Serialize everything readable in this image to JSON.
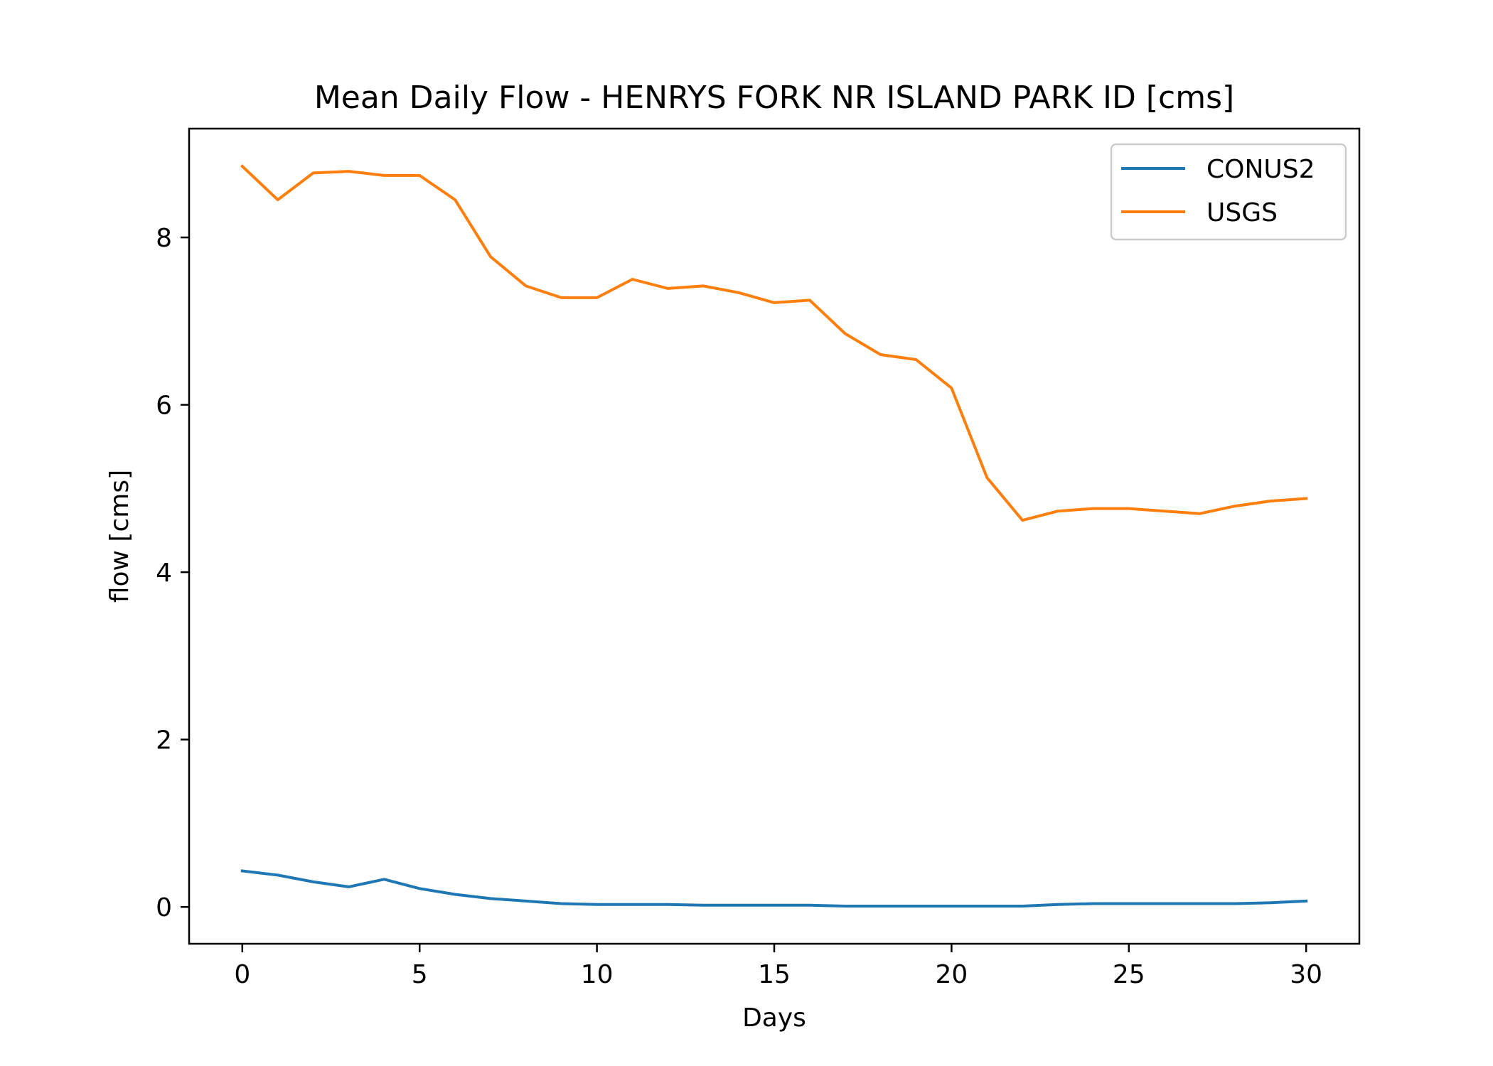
{
  "chart_data": {
    "type": "line",
    "title": "Mean Daily Flow - HENRYS FORK NR ISLAND PARK ID [cms]",
    "xlabel": "Days",
    "ylabel": "flow [cms]",
    "xlim": [
      -1.5,
      31.5
    ],
    "ylim": [
      -0.44,
      9.3
    ],
    "xticks": [
      0,
      5,
      10,
      15,
      20,
      25,
      30
    ],
    "yticks": [
      0,
      2,
      4,
      6,
      8
    ],
    "grid": false,
    "legend_position": "top-right",
    "x": [
      0,
      1,
      2,
      3,
      4,
      5,
      6,
      7,
      8,
      9,
      10,
      11,
      12,
      13,
      14,
      15,
      16,
      17,
      18,
      19,
      20,
      21,
      22,
      23,
      24,
      25,
      26,
      27,
      28,
      29,
      30
    ],
    "series": [
      {
        "name": "CONUS2",
        "color": "#1f77b4",
        "values": [
          0.43,
          0.38,
          0.3,
          0.24,
          0.33,
          0.22,
          0.15,
          0.1,
          0.07,
          0.04,
          0.03,
          0.03,
          0.03,
          0.02,
          0.02,
          0.02,
          0.02,
          0.01,
          0.01,
          0.01,
          0.01,
          0.01,
          0.01,
          0.03,
          0.04,
          0.04,
          0.04,
          0.04,
          0.04,
          0.05,
          0.07
        ]
      },
      {
        "name": "USGS",
        "color": "#ff7f0e",
        "values": [
          8.85,
          8.45,
          8.77,
          8.79,
          8.74,
          8.74,
          8.45,
          7.77,
          7.42,
          7.28,
          7.28,
          7.5,
          7.39,
          7.42,
          7.34,
          7.22,
          7.25,
          6.85,
          6.6,
          6.54,
          6.2,
          5.13,
          4.62,
          4.73,
          4.76,
          4.76,
          4.73,
          4.7,
          4.79,
          4.85,
          4.88
        ]
      }
    ]
  }
}
